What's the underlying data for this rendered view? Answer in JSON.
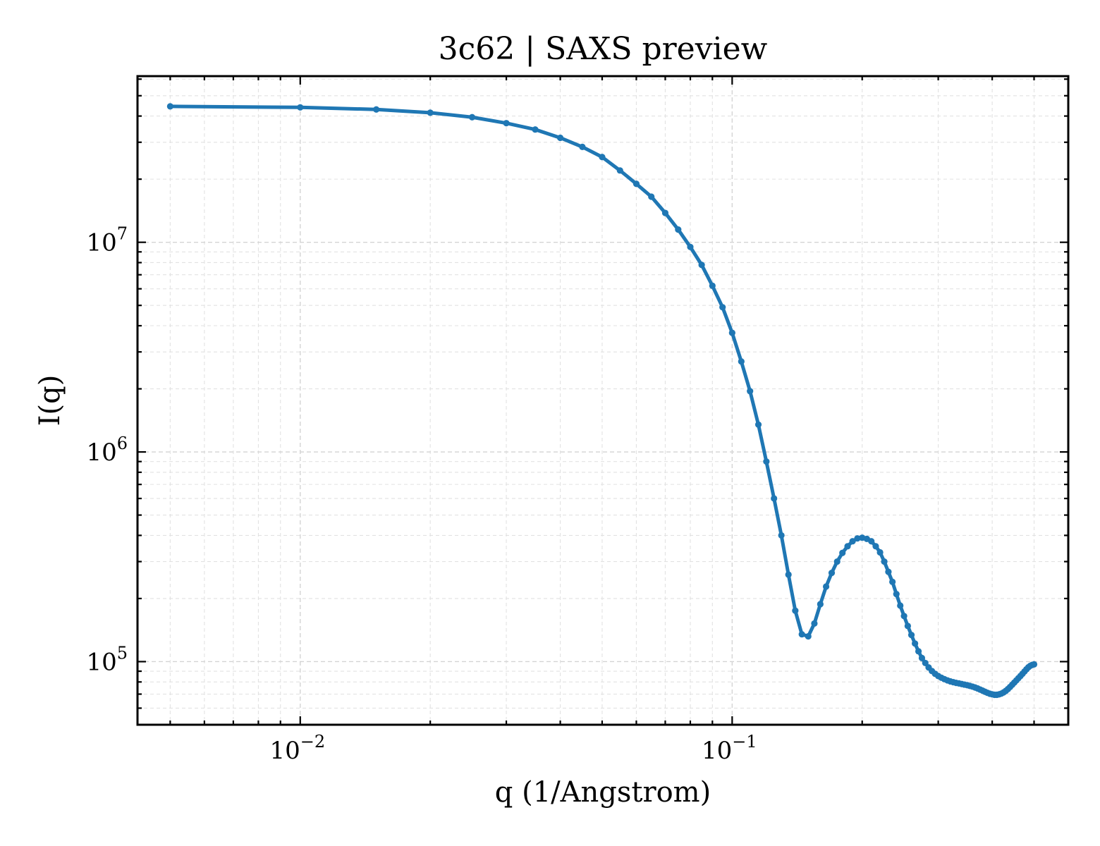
{
  "chart_data": {
    "type": "line",
    "title": "3c62 | SAXS preview",
    "xlabel": "q (1/Angstrom)",
    "ylabel": "I(q)",
    "xscale": "log",
    "yscale": "log",
    "xlim": [
      0.0042,
      0.6
    ],
    "ylim": [
      50000,
      62000000
    ],
    "grid": true,
    "markers": true,
    "colors": {
      "series": "#1f77b4",
      "grid": "#d4d4d4",
      "frame": "#000000"
    },
    "xticks": [
      {
        "value": 0.01,
        "base": "10",
        "exp": "−2"
      },
      {
        "value": 0.1,
        "base": "10",
        "exp": "−1"
      }
    ],
    "yticks": [
      {
        "value": 100000,
        "base": "10",
        "exp": "5"
      },
      {
        "value": 1000000,
        "base": "10",
        "exp": "6"
      },
      {
        "value": 10000000,
        "base": "10",
        "exp": "7"
      }
    ],
    "series": [
      {
        "color": "#1f77b4",
        "x": [
          0.005,
          0.01,
          0.015,
          0.02,
          0.025,
          0.03,
          0.035,
          0.04,
          0.045,
          0.05,
          0.055,
          0.06,
          0.065,
          0.07,
          0.075,
          0.08,
          0.085,
          0.09,
          0.095,
          0.1,
          0.105,
          0.11,
          0.115,
          0.12,
          0.125,
          0.13,
          0.135,
          0.14,
          0.145,
          0.15,
          0.155,
          0.16,
          0.165,
          0.17,
          0.175,
          0.18,
          0.185,
          0.19,
          0.195,
          0.2,
          0.205,
          0.21,
          0.215,
          0.22,
          0.225,
          0.23,
          0.235,
          0.24,
          0.245,
          0.25,
          0.255,
          0.26,
          0.265,
          0.27,
          0.275,
          0.28,
          0.285,
          0.29,
          0.295,
          0.3,
          0.305,
          0.31,
          0.315,
          0.32,
          0.325,
          0.33,
          0.335,
          0.34,
          0.345,
          0.35,
          0.355,
          0.36,
          0.365,
          0.37,
          0.375,
          0.38,
          0.385,
          0.39,
          0.395,
          0.4,
          0.405,
          0.41,
          0.415,
          0.42,
          0.425,
          0.43,
          0.435,
          0.44,
          0.445,
          0.45,
          0.455,
          0.46,
          0.465,
          0.47,
          0.475,
          0.48,
          0.485,
          0.49,
          0.495,
          0.5
        ],
        "y": [
          44500000,
          44000000,
          43000000,
          41500000,
          39500000,
          37000000,
          34500000,
          31500000,
          28500000,
          25500000,
          22000000,
          19000000,
          16500000,
          13800000,
          11500000,
          9500000,
          7800000,
          6200000,
          4900000,
          3700000,
          2700000,
          1950000,
          1350000,
          900000,
          600000,
          400000,
          260000,
          175000,
          135000,
          132000,
          152000,
          188000,
          228000,
          265000,
          300000,
          330000,
          355000,
          375000,
          387000,
          390000,
          385000,
          375000,
          355000,
          332000,
          300000,
          268000,
          240000,
          210000,
          185000,
          165000,
          148000,
          134000,
          122000,
          112000,
          104000,
          98500,
          93800,
          90200,
          87500,
          85400,
          83800,
          82500,
          81400,
          80500,
          79800,
          79200,
          78700,
          78200,
          77700,
          77200,
          76600,
          76000,
          75300,
          74500,
          73600,
          72700,
          71800,
          71000,
          70300,
          69800,
          69500,
          69500,
          69800,
          70400,
          71300,
          72500,
          74000,
          75700,
          77600,
          79500,
          81400,
          83400,
          85400,
          87500,
          89700,
          91900,
          94000,
          95500,
          96500,
          97000
        ]
      }
    ]
  }
}
